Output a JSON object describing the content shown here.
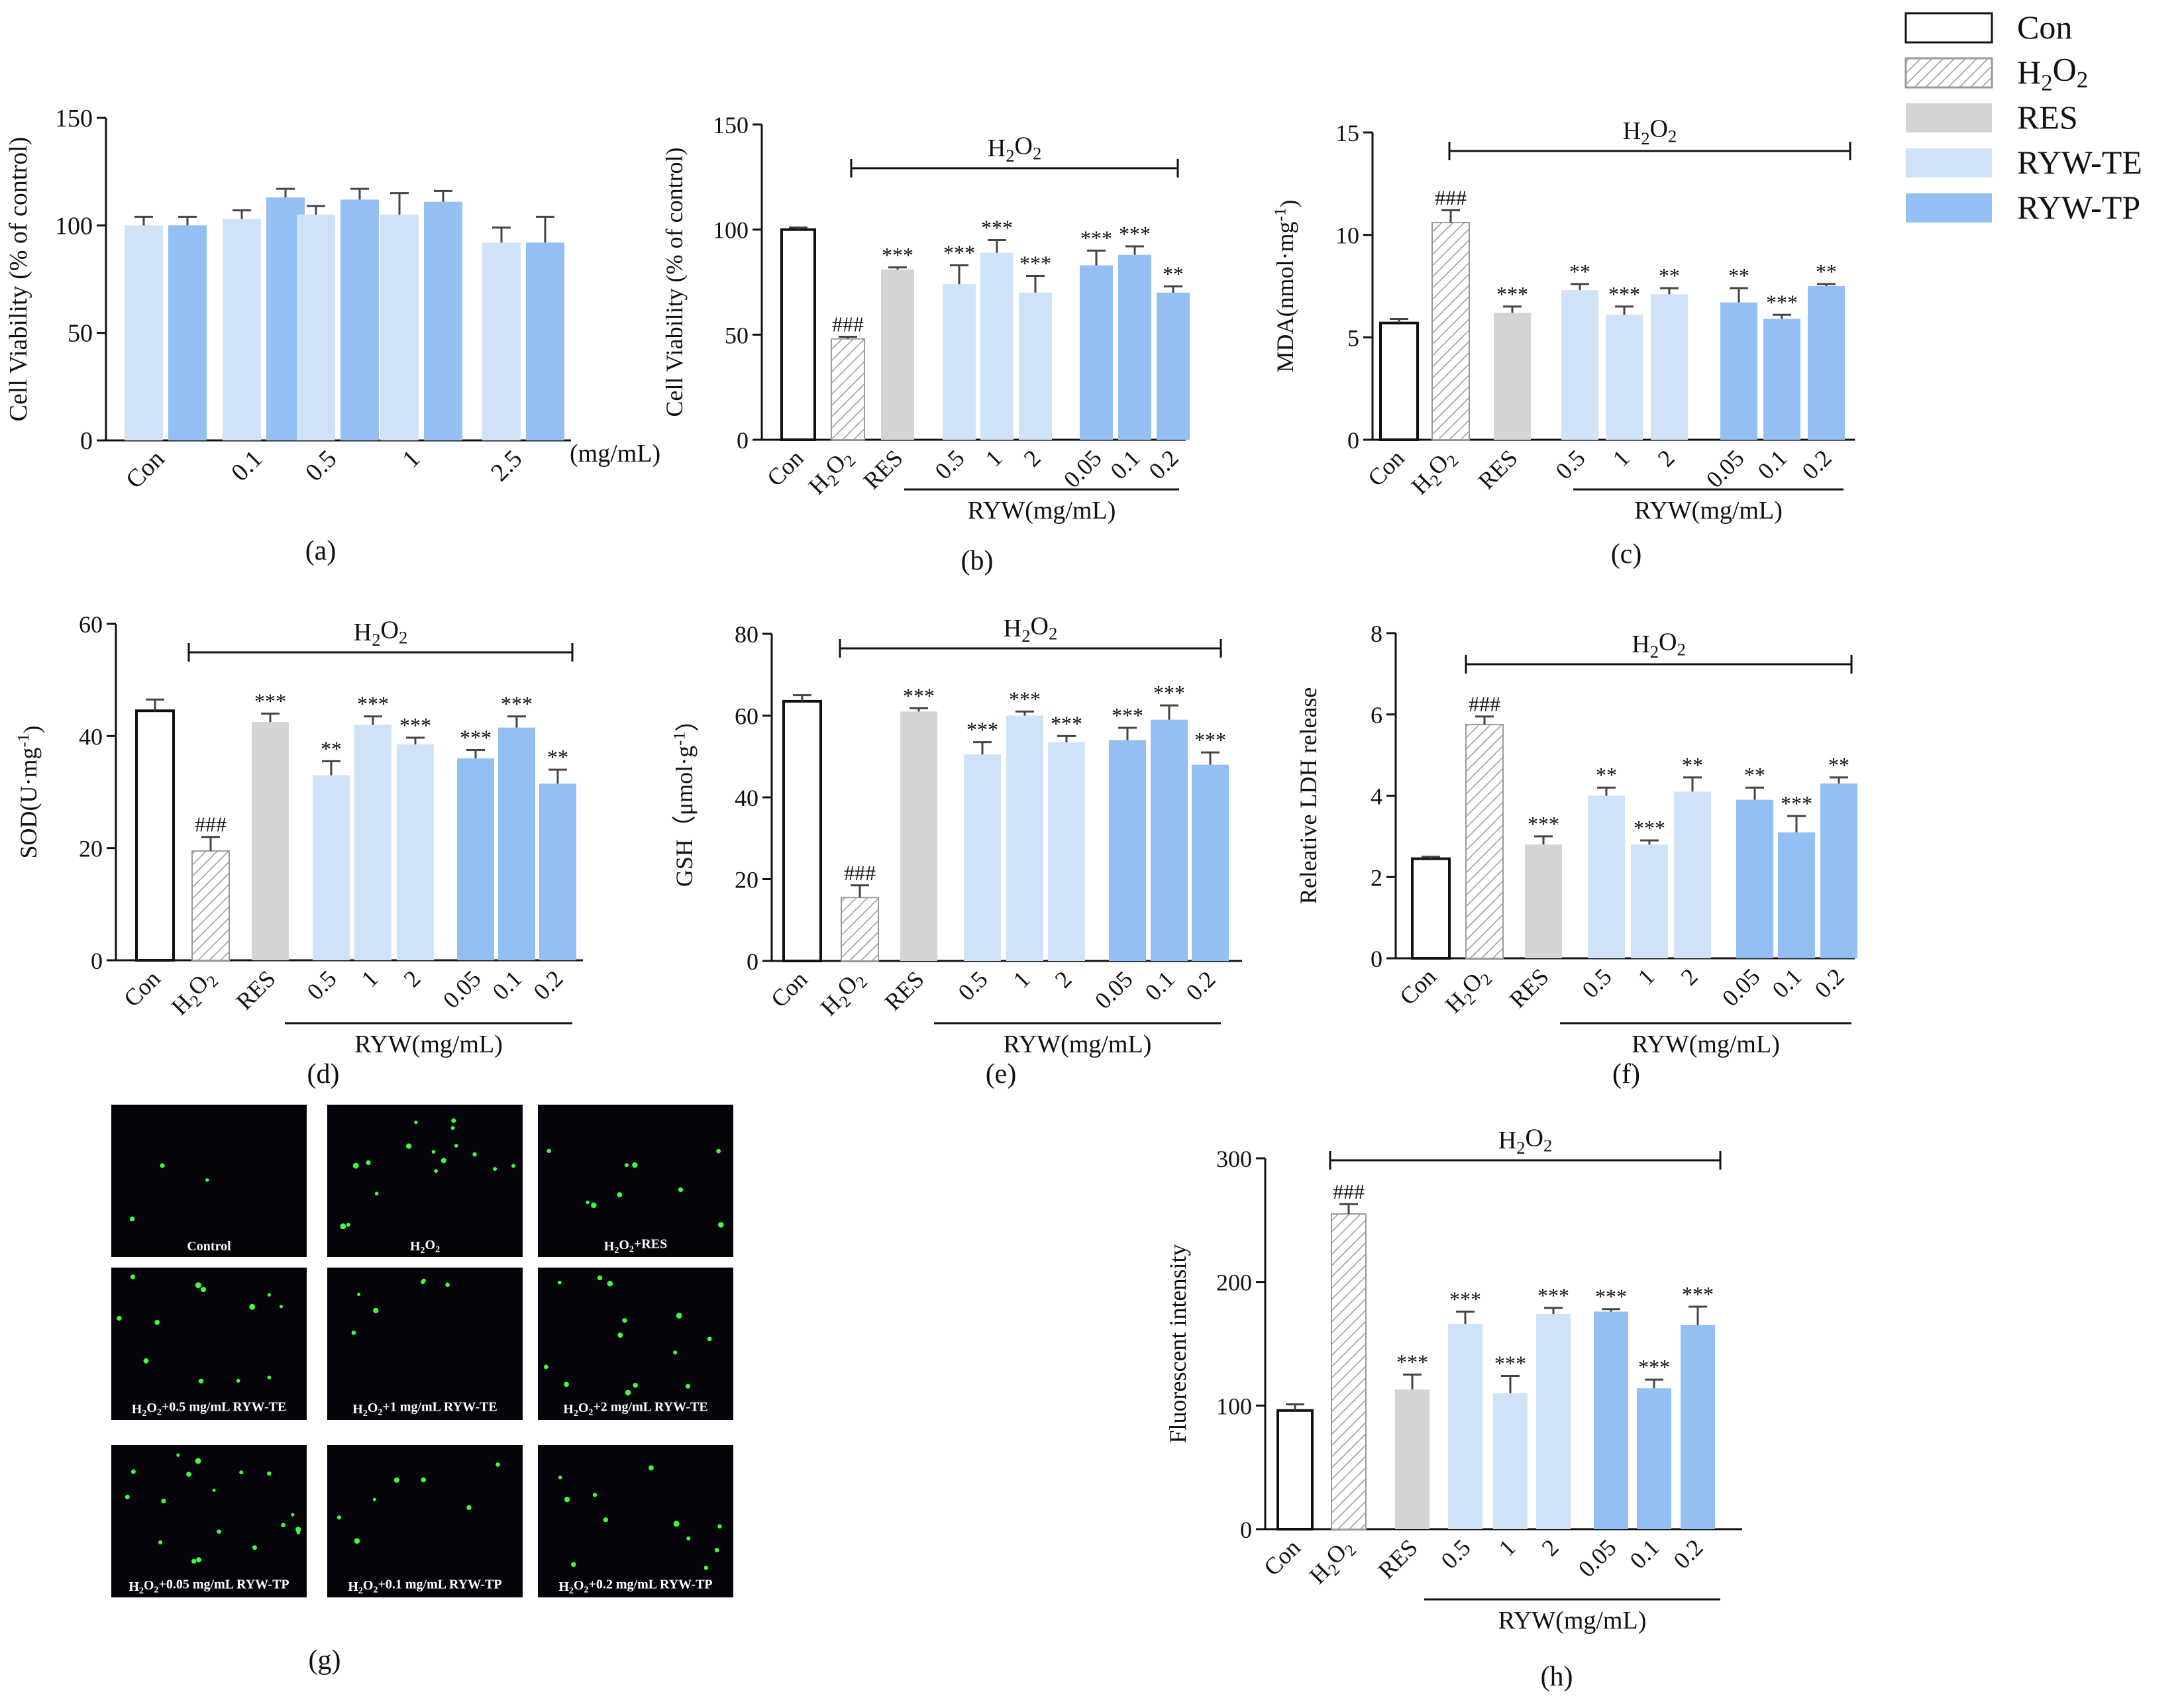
{
  "colors": {
    "Con": "#ffffff",
    "H2O2": "#ffffff",
    "RES": "#d4d4d4",
    "RYW-TE": "#cfe2f7",
    "RYW-TP": "#93bff2"
  },
  "legend": [
    {
      "key": "Con",
      "label": "Con"
    },
    {
      "key": "H2O2",
      "label": "H2O2"
    },
    {
      "key": "RES",
      "label": "RES"
    },
    {
      "key": "RYW-TE",
      "label": "RYW-TE"
    },
    {
      "key": "RYW-TP",
      "label": "RYW-TP"
    }
  ],
  "images_g": [
    {
      "label": "Control",
      "dots": 3
    },
    {
      "label": "H2O2",
      "dots": 16
    },
    {
      "label": "H2O2+RES",
      "dots": 9
    },
    {
      "label": "H2O2+0.5 mg/mL RYW-TE",
      "dots": 12
    },
    {
      "label": "H2O2+1 mg/mL RYW-TE",
      "dots": 6
    },
    {
      "label": "H2O2+2 mg/mL RYW-TE",
      "dots": 13
    },
    {
      "label": "H2O2+0.05 mg/mL RYW-TP",
      "dots": 18
    },
    {
      "label": "H2O2+0.1 mg/mL RYW-TP",
      "dots": 7
    },
    {
      "label": "H2O2+0.2 mg/mL RYW-TP",
      "dots": 11
    }
  ],
  "chart_data": [
    {
      "panel": "a",
      "caption": "(a)",
      "type": "bar",
      "ylabel": "Cell Viability (% of control)",
      "ylim": [
        0,
        150
      ],
      "yticks": [
        0,
        50,
        100,
        150
      ],
      "categories": [
        "Con",
        "0.1",
        "0.5",
        "1",
        "2.5"
      ],
      "unit_label": "(mg/mL)",
      "series": [
        {
          "name": "RYW-TE",
          "values": [
            100,
            103,
            105,
            105,
            92
          ],
          "errors": [
            4,
            4,
            4,
            10,
            7
          ]
        },
        {
          "name": "RYW-TP",
          "values": [
            100,
            113,
            112,
            111,
            92
          ],
          "errors": [
            4,
            4,
            5,
            5,
            12
          ]
        }
      ]
    },
    {
      "panel": "b",
      "caption": "(b)",
      "type": "bar",
      "ylabel": "Cell Viability (% of control)",
      "ylim": [
        0,
        150
      ],
      "yticks": [
        0,
        50,
        100,
        150
      ],
      "bracket_label": "H2O2",
      "group_label": "RYW(mg/mL)",
      "categories": [
        "Con",
        "H2O2",
        "RES",
        "0.5",
        "1",
        "2",
        "0.05",
        "0.1",
        "0.2"
      ],
      "groups": [
        "Con",
        "H2O2",
        "RES",
        "RYW-TE",
        "RYW-TE",
        "RYW-TE",
        "RYW-TP",
        "RYW-TP",
        "RYW-TP"
      ],
      "values": [
        100,
        48,
        81,
        74,
        89,
        70,
        83,
        88,
        70
      ],
      "errors": [
        1,
        1,
        1,
        9,
        6,
        8,
        7,
        4,
        3
      ],
      "annotations": [
        "",
        "###",
        "***",
        "***",
        "***",
        "***",
        "***",
        "***",
        "**"
      ]
    },
    {
      "panel": "c",
      "caption": "(c)",
      "type": "bar",
      "ylabel": "MDA(nmol·mg-1)",
      "ylim": [
        0,
        15
      ],
      "yticks": [
        0,
        5,
        10,
        15
      ],
      "bracket_label": "H2O2",
      "group_label": "RYW(mg/mL)",
      "categories": [
        "Con",
        "H2O2",
        "RES",
        "0.5",
        "1",
        "2",
        "0.05",
        "0.1",
        "0.2"
      ],
      "groups": [
        "Con",
        "H2O2",
        "RES",
        "RYW-TE",
        "RYW-TE",
        "RYW-TE",
        "RYW-TP",
        "RYW-TP",
        "RYW-TP"
      ],
      "values": [
        5.7,
        10.6,
        6.2,
        7.3,
        6.1,
        7.1,
        6.7,
        5.9,
        7.5
      ],
      "errors": [
        0.2,
        0.6,
        0.3,
        0.3,
        0.4,
        0.3,
        0.7,
        0.2,
        0.1
      ],
      "annotations": [
        "",
        "###",
        "***",
        "**",
        "***",
        "**",
        "**",
        "***",
        "**"
      ]
    },
    {
      "panel": "d",
      "caption": "(d)",
      "type": "bar",
      "ylabel": "SOD(U·mg-1)",
      "ylim": [
        0,
        60
      ],
      "yticks": [
        0,
        20,
        40,
        60
      ],
      "bracket_label": "H2O2",
      "group_label": "RYW(mg/mL)",
      "categories": [
        "Con",
        "H2O2",
        "RES",
        "0.5",
        "1",
        "2",
        "0.05",
        "0.1",
        "0.2"
      ],
      "groups": [
        "Con",
        "H2O2",
        "RES",
        "RYW-TE",
        "RYW-TE",
        "RYW-TE",
        "RYW-TP",
        "RYW-TP",
        "RYW-TP"
      ],
      "values": [
        44.5,
        19.5,
        42.5,
        33,
        42,
        38.5,
        36,
        41.5,
        31.5
      ],
      "errors": [
        2,
        2.5,
        1.5,
        2.5,
        1.5,
        1.2,
        1.5,
        2,
        2.5
      ],
      "annotations": [
        "",
        "###",
        "***",
        "**",
        "***",
        "***",
        "***",
        "***",
        "**"
      ]
    },
    {
      "panel": "e",
      "caption": "(e)",
      "type": "bar",
      "ylabel": "GSH（μmol·g-1）",
      "ylim": [
        0,
        80
      ],
      "yticks": [
        0,
        20,
        40,
        60,
        80
      ],
      "bracket_label": "H2O2",
      "group_label": "RYW(mg/mL)",
      "categories": [
        "Con",
        "H2O2",
        "RES",
        "0.5",
        "1",
        "2",
        "0.05",
        "0.1",
        "0.2"
      ],
      "groups": [
        "Con",
        "H2O2",
        "RES",
        "RYW-TE",
        "RYW-TE",
        "RYW-TE",
        "RYW-TP",
        "RYW-TP",
        "RYW-TP"
      ],
      "values": [
        63.5,
        15.5,
        61,
        50.5,
        60,
        53.5,
        54,
        59,
        48
      ],
      "errors": [
        1.5,
        3,
        0.8,
        3,
        1,
        1.5,
        3,
        3.5,
        3
      ],
      "annotations": [
        "",
        "###",
        "***",
        "***",
        "***",
        "***",
        "***",
        "***",
        "***"
      ]
    },
    {
      "panel": "f",
      "caption": "(f)",
      "type": "bar",
      "ylabel": "Releative LDH release",
      "ylim": [
        0,
        8
      ],
      "yticks": [
        0,
        2,
        4,
        6,
        8
      ],
      "bracket_label": "H2O2",
      "group_label": "RYW(mg/mL)",
      "categories": [
        "Con",
        "H2O2",
        "RES",
        "0.5",
        "1",
        "2",
        "0.05",
        "0.1",
        "0.2"
      ],
      "groups": [
        "Con",
        "H2O2",
        "RES",
        "RYW-TE",
        "RYW-TE",
        "RYW-TE",
        "RYW-TP",
        "RYW-TP",
        "RYW-TP"
      ],
      "values": [
        2.45,
        5.75,
        2.8,
        4.0,
        2.8,
        4.1,
        3.9,
        3.1,
        4.3
      ],
      "errors": [
        0.05,
        0.2,
        0.2,
        0.2,
        0.1,
        0.35,
        0.3,
        0.4,
        0.15
      ],
      "annotations": [
        "",
        "###",
        "***",
        "**",
        "***",
        "**",
        "**",
        "***",
        "**"
      ]
    },
    {
      "panel": "h",
      "caption": "(h)",
      "type": "bar",
      "ylabel": "Fluorescent intensity",
      "ylim": [
        0,
        300
      ],
      "yticks": [
        0,
        100,
        200,
        300
      ],
      "bracket_label": "H2O2",
      "group_label": "RYW(mg/mL)",
      "categories": [
        "Con",
        "H2O2",
        "RES",
        "0.5",
        "1",
        "2",
        "0.05",
        "0.1",
        "0.2"
      ],
      "groups": [
        "Con",
        "H2O2",
        "RES",
        "RYW-TE",
        "RYW-TE",
        "RYW-TE",
        "RYW-TP",
        "RYW-TP",
        "RYW-TP"
      ],
      "values": [
        96,
        255,
        113,
        166,
        110,
        174,
        176,
        114,
        165
      ],
      "errors": [
        5,
        8,
        12,
        10,
        14,
        5,
        2,
        7,
        15
      ],
      "annotations": [
        "",
        "###",
        "***",
        "***",
        "***",
        "***",
        "***",
        "***",
        "***"
      ]
    }
  ],
  "caption_g": "(g)"
}
